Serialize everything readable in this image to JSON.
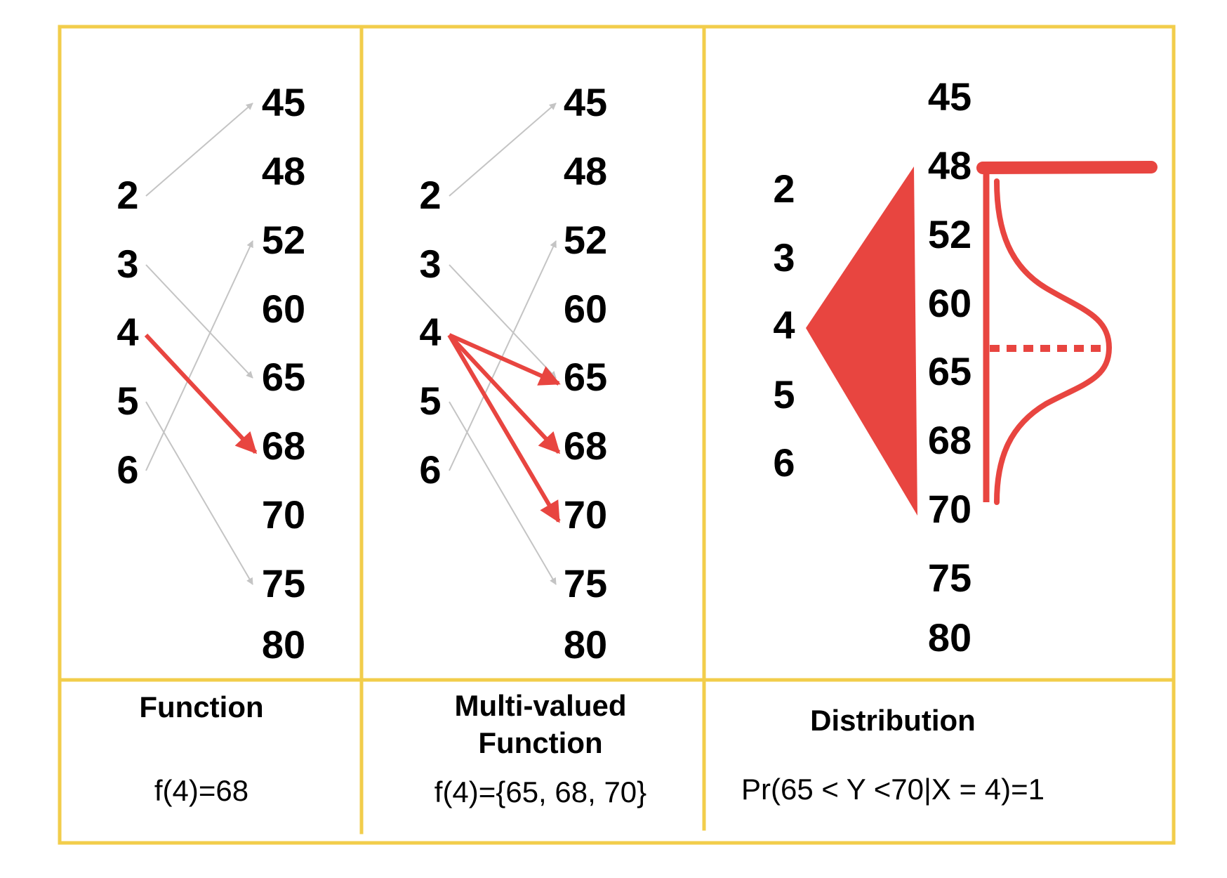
{
  "panels": [
    {
      "id": "function",
      "inputs": [
        "2",
        "3",
        "4",
        "5",
        "6"
      ],
      "outputs": [
        "45",
        "48",
        "52",
        "60",
        "65",
        "68",
        "70",
        "75",
        "80"
      ],
      "gray_mappings": [
        [
          "2",
          "45"
        ],
        [
          "3",
          "65"
        ],
        [
          "5",
          "75"
        ],
        [
          "6",
          "52"
        ]
      ],
      "red_mappings": [
        [
          "4",
          "68"
        ]
      ],
      "title": [
        "Function"
      ],
      "formula": "f(4)=68"
    },
    {
      "id": "multi-valued-function",
      "inputs": [
        "2",
        "3",
        "4",
        "5",
        "6"
      ],
      "outputs": [
        "45",
        "48",
        "52",
        "60",
        "65",
        "68",
        "70",
        "75",
        "80"
      ],
      "gray_mappings": [
        [
          "2",
          "45"
        ],
        [
          "3",
          "65"
        ],
        [
          "5",
          "75"
        ],
        [
          "6",
          "52"
        ]
      ],
      "red_mappings": [
        [
          "4",
          "65"
        ],
        [
          "4",
          "68"
        ],
        [
          "4",
          "70"
        ]
      ],
      "title": [
        "Multi-valued",
        "Function"
      ],
      "formula": "f(4)={65, 68, 70}"
    },
    {
      "id": "distribution",
      "inputs": [
        "2",
        "3",
        "4",
        "5",
        "6"
      ],
      "outputs": [
        "45",
        "48",
        "52",
        "60",
        "65",
        "68",
        "70",
        "75",
        "80"
      ],
      "fan_from": "4",
      "fan_range": [
        "48",
        "70"
      ],
      "title": [
        "Distribution"
      ],
      "formula": "Pr(65 < Y <70|X = 4)=1"
    }
  ],
  "colors": {
    "border": "#f2cd4b",
    "accent": "#e84540",
    "mapping_gray": "#c4c4c4",
    "text": "#000000"
  }
}
